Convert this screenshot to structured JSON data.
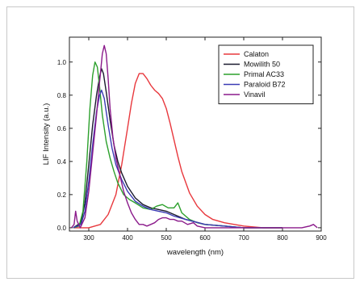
{
  "chart_data": {
    "type": "line",
    "xlabel": "wavelength (nm)",
    "ylabel": "LIF Intensity (a.u.)",
    "xlim": [
      250,
      900
    ],
    "ylim": [
      -0.02,
      1.15
    ],
    "xticks": [
      300,
      400,
      500,
      600,
      700,
      800,
      900
    ],
    "yticks": [
      0.0,
      0.2,
      0.4,
      0.6,
      0.8,
      1.0
    ],
    "x_tick_labels": [
      "300",
      "400",
      "500",
      "600",
      "700",
      "800",
      "900"
    ],
    "y_tick_labels": [
      "0.0",
      "0.2",
      "0.4",
      "0.6",
      "0.8",
      "1.0"
    ],
    "legend_position": "top-right",
    "series": [
      {
        "name": "Calaton",
        "color": "#e8383d",
        "points": [
          [
            260,
            0.0
          ],
          [
            300,
            0.0
          ],
          [
            330,
            0.02
          ],
          [
            350,
            0.08
          ],
          [
            370,
            0.2
          ],
          [
            385,
            0.38
          ],
          [
            400,
            0.6
          ],
          [
            410,
            0.75
          ],
          [
            420,
            0.87
          ],
          [
            430,
            0.93
          ],
          [
            440,
            0.93
          ],
          [
            450,
            0.9
          ],
          [
            460,
            0.86
          ],
          [
            470,
            0.83
          ],
          [
            480,
            0.81
          ],
          [
            490,
            0.78
          ],
          [
            500,
            0.72
          ],
          [
            510,
            0.63
          ],
          [
            520,
            0.53
          ],
          [
            530,
            0.43
          ],
          [
            540,
            0.34
          ],
          [
            560,
            0.21
          ],
          [
            580,
            0.13
          ],
          [
            600,
            0.08
          ],
          [
            620,
            0.05
          ],
          [
            650,
            0.03
          ],
          [
            700,
            0.01
          ],
          [
            750,
            0.0
          ],
          [
            800,
            0.0
          ]
        ]
      },
      {
        "name": "Mowilith 50",
        "color": "#1a1a2e",
        "points": [
          [
            260,
            0.0
          ],
          [
            280,
            0.03
          ],
          [
            290,
            0.15
          ],
          [
            300,
            0.38
          ],
          [
            310,
            0.62
          ],
          [
            320,
            0.8
          ],
          [
            328,
            0.91
          ],
          [
            333,
            0.96
          ],
          [
            338,
            0.93
          ],
          [
            345,
            0.82
          ],
          [
            355,
            0.65
          ],
          [
            365,
            0.5
          ],
          [
            375,
            0.4
          ],
          [
            385,
            0.33
          ],
          [
            400,
            0.25
          ],
          [
            420,
            0.18
          ],
          [
            440,
            0.14
          ],
          [
            460,
            0.12
          ],
          [
            480,
            0.11
          ],
          [
            500,
            0.1
          ],
          [
            520,
            0.08
          ],
          [
            550,
            0.05
          ],
          [
            600,
            0.02
          ],
          [
            650,
            0.01
          ],
          [
            700,
            0.0
          ],
          [
            800,
            0.0
          ]
        ]
      },
      {
        "name": "Primal AC33",
        "color": "#2ca02c",
        "points": [
          [
            260,
            0.0
          ],
          [
            275,
            0.01
          ],
          [
            285,
            0.1
          ],
          [
            295,
            0.4
          ],
          [
            303,
            0.72
          ],
          [
            310,
            0.92
          ],
          [
            316,
            1.0
          ],
          [
            322,
            0.97
          ],
          [
            328,
            0.85
          ],
          [
            335,
            0.68
          ],
          [
            345,
            0.52
          ],
          [
            355,
            0.42
          ],
          [
            365,
            0.34
          ],
          [
            375,
            0.27
          ],
          [
            390,
            0.2
          ],
          [
            405,
            0.17
          ],
          [
            420,
            0.15
          ],
          [
            440,
            0.12
          ],
          [
            460,
            0.11
          ],
          [
            475,
            0.13
          ],
          [
            490,
            0.14
          ],
          [
            505,
            0.12
          ],
          [
            520,
            0.12
          ],
          [
            530,
            0.15
          ],
          [
            540,
            0.09
          ],
          [
            560,
            0.05
          ],
          [
            580,
            0.03
          ],
          [
            600,
            0.02
          ],
          [
            650,
            0.01
          ],
          [
            700,
            0.0
          ],
          [
            800,
            0.0
          ]
        ]
      },
      {
        "name": "Paraloid B72",
        "color": "#3b3bb5",
        "points": [
          [
            260,
            0.0
          ],
          [
            280,
            0.02
          ],
          [
            290,
            0.1
          ],
          [
            300,
            0.28
          ],
          [
            310,
            0.5
          ],
          [
            320,
            0.7
          ],
          [
            328,
            0.8
          ],
          [
            333,
            0.83
          ],
          [
            340,
            0.78
          ],
          [
            350,
            0.62
          ],
          [
            360,
            0.48
          ],
          [
            370,
            0.38
          ],
          [
            385,
            0.29
          ],
          [
            400,
            0.22
          ],
          [
            420,
            0.16
          ],
          [
            440,
            0.13
          ],
          [
            460,
            0.11
          ],
          [
            480,
            0.1
          ],
          [
            500,
            0.09
          ],
          [
            520,
            0.07
          ],
          [
            550,
            0.05
          ],
          [
            600,
            0.02
          ],
          [
            650,
            0.01
          ],
          [
            700,
            0.0
          ],
          [
            800,
            0.0
          ]
        ]
      },
      {
        "name": "Vinavil",
        "color": "#8b1a8b",
        "points": [
          [
            255,
            0.0
          ],
          [
            262,
            0.02
          ],
          [
            266,
            0.1
          ],
          [
            270,
            0.04
          ],
          [
            278,
            0.0
          ],
          [
            290,
            0.06
          ],
          [
            300,
            0.22
          ],
          [
            310,
            0.45
          ],
          [
            320,
            0.68
          ],
          [
            328,
            0.88
          ],
          [
            335,
            1.05
          ],
          [
            340,
            1.1
          ],
          [
            345,
            1.05
          ],
          [
            350,
            0.9
          ],
          [
            355,
            0.72
          ],
          [
            362,
            0.55
          ],
          [
            370,
            0.42
          ],
          [
            380,
            0.32
          ],
          [
            390,
            0.22
          ],
          [
            400,
            0.15
          ],
          [
            410,
            0.09
          ],
          [
            420,
            0.05
          ],
          [
            430,
            0.02
          ],
          [
            440,
            0.02
          ],
          [
            450,
            0.01
          ],
          [
            460,
            0.02
          ],
          [
            470,
            0.03
          ],
          [
            480,
            0.05
          ],
          [
            490,
            0.06
          ],
          [
            500,
            0.06
          ],
          [
            510,
            0.05
          ],
          [
            520,
            0.05
          ],
          [
            530,
            0.04
          ],
          [
            540,
            0.04
          ],
          [
            555,
            0.02
          ],
          [
            570,
            0.03
          ],
          [
            580,
            0.01
          ],
          [
            600,
            0.0
          ],
          [
            650,
            0.0
          ],
          [
            700,
            0.0
          ],
          [
            750,
            0.0
          ],
          [
            800,
            0.0
          ],
          [
            850,
            0.0
          ],
          [
            870,
            0.01
          ],
          [
            880,
            0.02
          ],
          [
            890,
            0.0
          ]
        ]
      }
    ]
  }
}
